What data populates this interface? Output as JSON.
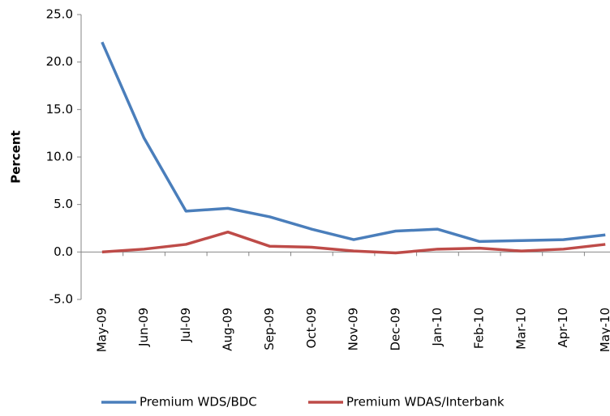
{
  "chart_data": {
    "type": "line",
    "y_label": "Percent",
    "categories": [
      "May-09",
      "Jun-09",
      "Jul-09",
      "Aug-09",
      "Sep-09",
      "Oct-09",
      "Nov-09",
      "Dec-09",
      "Jan-10",
      "Feb-10",
      "Mar-10",
      "Apr-10",
      "May-10"
    ],
    "series": [
      {
        "name": "Premium WDS/BDC",
        "color": "#4a7ebb",
        "values": [
          22.1,
          12.0,
          4.3,
          4.6,
          3.7,
          2.4,
          1.3,
          2.2,
          2.4,
          1.1,
          1.2,
          1.3,
          1.8
        ]
      },
      {
        "name": "Premium WDAS/Interbank",
        "color": "#be4b48",
        "values": [
          0.0,
          0.3,
          0.8,
          2.1,
          0.6,
          0.5,
          0.1,
          -0.1,
          0.3,
          0.4,
          0.1,
          0.3,
          0.8
        ]
      }
    ],
    "ylim": [
      -5,
      25
    ],
    "yticks": [
      {
        "value": -5,
        "label": "-5.0"
      },
      {
        "value": 0,
        "label": "0.0"
      },
      {
        "value": 5,
        "label": "5.0"
      },
      {
        "value": 10,
        "label": "10.0"
      },
      {
        "value": 15,
        "label": "15.0"
      },
      {
        "value": 20,
        "label": "20.0"
      },
      {
        "value": 25,
        "label": "25.0"
      }
    ],
    "grid": false
  }
}
